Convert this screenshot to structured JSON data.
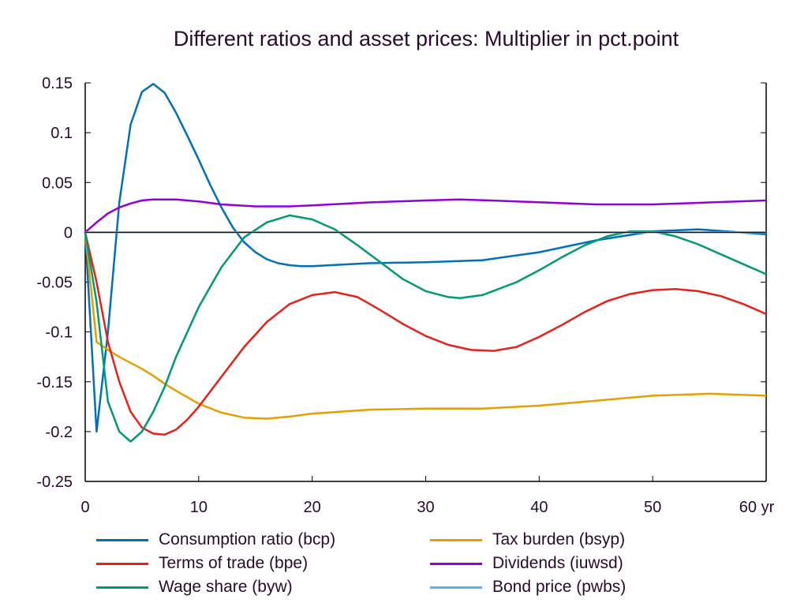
{
  "chart_data": {
    "type": "line",
    "title": "Different ratios and asset prices: Multiplier in pct.point",
    "xlabel": "yr",
    "ylabel": "",
    "xlim": [
      0,
      60
    ],
    "ylim": [
      -0.25,
      0.15
    ],
    "x_ticks": [
      0,
      10,
      20,
      30,
      40,
      50,
      60
    ],
    "x_tick_labels": [
      "0",
      "10",
      "20",
      "30",
      "40",
      "50",
      "60 yr"
    ],
    "y_ticks": [
      0.15,
      0.1,
      0.05,
      0,
      -0.05,
      -0.1,
      -0.15,
      -0.2,
      -0.25
    ],
    "y_tick_labels": [
      "0.15",
      "0.1",
      "0.05",
      "0",
      "-0.05",
      "-0.1",
      "-0.15",
      "-0.2",
      "-0.25"
    ],
    "grid": false,
    "legend_position": "bottom",
    "series": [
      {
        "name": "Consumption ratio (bcp)",
        "color": "#0070b8",
        "x": [
          0,
          1,
          2,
          3,
          4,
          5,
          6,
          7,
          8,
          9,
          10,
          11,
          12,
          13,
          14,
          15,
          16,
          17,
          18,
          19,
          20,
          25,
          30,
          35,
          40,
          45,
          50,
          54,
          60
        ],
        "y": [
          0,
          -0.2,
          -0.1,
          0.03,
          0.108,
          0.141,
          0.149,
          0.14,
          0.12,
          0.097,
          0.073,
          0.048,
          0.025,
          0.005,
          -0.01,
          -0.02,
          -0.027,
          -0.031,
          -0.033,
          -0.034,
          -0.034,
          -0.031,
          -0.03,
          -0.028,
          -0.02,
          -0.008,
          0.001,
          0.003,
          -0.002
        ]
      },
      {
        "name": "Tax burden (bsyp)",
        "color": "#e69f00",
        "x": [
          0,
          1,
          2,
          3,
          4,
          5,
          6,
          7,
          8,
          10,
          12,
          14,
          16,
          18,
          20,
          25,
          30,
          35,
          40,
          45,
          50,
          55,
          60
        ],
        "y": [
          0,
          -0.11,
          -0.118,
          -0.125,
          -0.131,
          -0.137,
          -0.144,
          -0.152,
          -0.159,
          -0.172,
          -0.181,
          -0.186,
          -0.187,
          -0.185,
          -0.182,
          -0.178,
          -0.177,
          -0.177,
          -0.174,
          -0.169,
          -0.164,
          -0.162,
          -0.164
        ]
      },
      {
        "name": "Terms of trade (bpe)",
        "color": "#e8201a",
        "x": [
          0,
          1,
          2,
          3,
          4,
          5,
          6,
          7,
          8,
          9,
          10,
          12,
          14,
          16,
          18,
          20,
          22,
          24,
          26,
          28,
          30,
          32,
          34,
          36,
          38,
          40,
          42,
          44,
          46,
          48,
          50,
          52,
          54,
          56,
          58,
          60
        ],
        "y": [
          0,
          -0.05,
          -0.11,
          -0.15,
          -0.18,
          -0.196,
          -0.202,
          -0.203,
          -0.198,
          -0.188,
          -0.175,
          -0.145,
          -0.115,
          -0.09,
          -0.072,
          -0.063,
          -0.06,
          -0.065,
          -0.078,
          -0.092,
          -0.104,
          -0.113,
          -0.118,
          -0.119,
          -0.115,
          -0.105,
          -0.093,
          -0.08,
          -0.069,
          -0.062,
          -0.058,
          -0.057,
          -0.059,
          -0.064,
          -0.072,
          -0.082
        ]
      },
      {
        "name": "Dividends (iuwsd)",
        "color": "#9400d3",
        "x": [
          0,
          1,
          2,
          3,
          4,
          5,
          6,
          8,
          10,
          12,
          15,
          18,
          20,
          25,
          30,
          33,
          38,
          45,
          50,
          55,
          60
        ],
        "y": [
          0,
          0.01,
          0.019,
          0.025,
          0.029,
          0.032,
          0.033,
          0.033,
          0.031,
          0.028,
          0.026,
          0.026,
          0.027,
          0.03,
          0.032,
          0.033,
          0.031,
          0.028,
          0.028,
          0.03,
          0.032
        ]
      },
      {
        "name": "Wage share (byw)",
        "color": "#009a73",
        "x": [
          0,
          1,
          2,
          3,
          4,
          5,
          6,
          7,
          8,
          10,
          12,
          14,
          16,
          18,
          20,
          22,
          24,
          26,
          28,
          30,
          32,
          33,
          35,
          38,
          40,
          42,
          44,
          46,
          48,
          50,
          52,
          54,
          56,
          58,
          60
        ],
        "y": [
          0,
          -0.07,
          -0.17,
          -0.2,
          -0.21,
          -0.2,
          -0.18,
          -0.155,
          -0.125,
          -0.075,
          -0.035,
          -0.005,
          0.01,
          0.017,
          0.013,
          0.003,
          -0.013,
          -0.03,
          -0.047,
          -0.059,
          -0.065,
          -0.066,
          -0.063,
          -0.05,
          -0.038,
          -0.025,
          -0.013,
          -0.004,
          0.001,
          0.001,
          -0.004,
          -0.012,
          -0.022,
          -0.032,
          -0.042
        ]
      },
      {
        "name": "Bond price (pwbs)",
        "color": "#56b4e9",
        "x": [
          0,
          60
        ],
        "y": [
          0,
          0
        ]
      }
    ]
  }
}
